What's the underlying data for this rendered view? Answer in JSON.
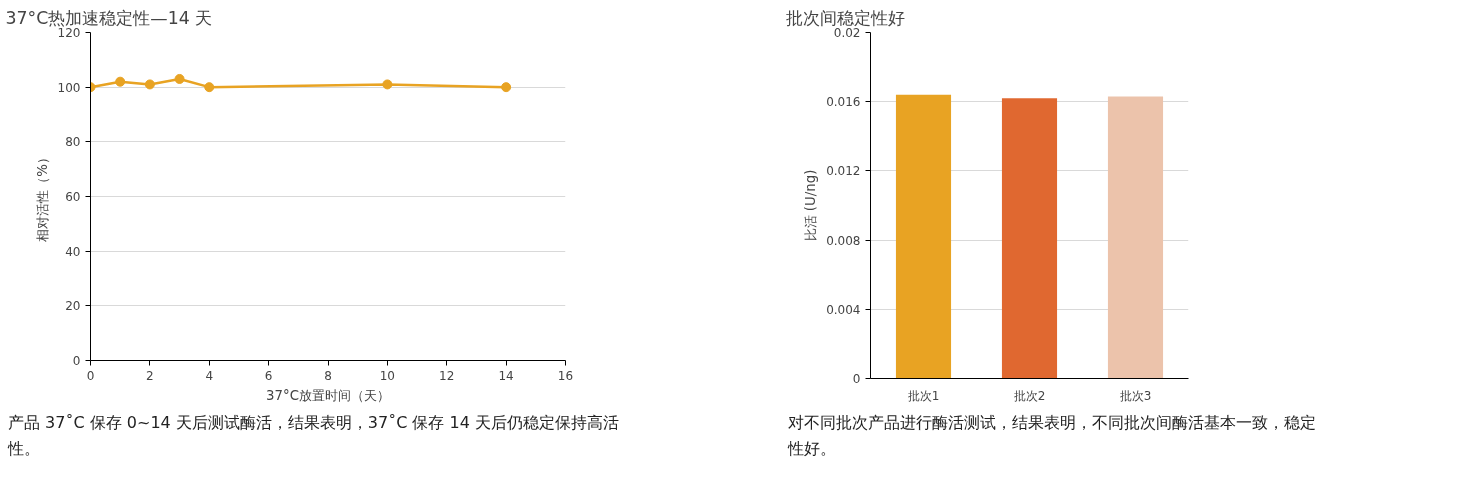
{
  "chart_data": [
    {
      "type": "line",
      "title": "37°C热加速稳定性—14 天",
      "xlabel": "37°C放置时间（天）",
      "ylabel": "相对活性（%）",
      "x": [
        0,
        1,
        2,
        3,
        4,
        10,
        14
      ],
      "series": [
        {
          "color": "#e8a323",
          "values": [
            100,
            102,
            101,
            103,
            100,
            101,
            100
          ]
        }
      ],
      "xlim": [
        0,
        16
      ],
      "xticks": [
        0,
        2,
        4,
        6,
        8,
        10,
        12,
        14,
        16
      ],
      "ylim": [
        0,
        120
      ],
      "yticks": [
        0,
        20,
        40,
        60,
        80,
        100,
        120
      ],
      "grid": "y",
      "marker": "circle",
      "line_style": "solid",
      "annotations": [
        "产品 37˚C 保存 0~14 天后测试酶活，结果表明，37˚C 保存 14 天后仍稳定保持高活性。"
      ]
    },
    {
      "type": "bar",
      "title": "批次间稳定性好",
      "ylabel": "比活 (U/ng)",
      "categories": [
        "批次1",
        "批次2",
        "批次3"
      ],
      "values": [
        0.0164,
        0.0162,
        0.0163
      ],
      "colors": [
        "#e8a323",
        "#e06830",
        "#ecc3ab"
      ],
      "ylim": [
        0,
        0.02
      ],
      "yticks": [
        0,
        0.004,
        0.008,
        0.012,
        0.016,
        0.02
      ],
      "grid": "y",
      "annotations": [
        "对不同批次产品进行酶活测试，结果表明，不同批次间酶活基本一致，稳定性好。"
      ]
    }
  ]
}
